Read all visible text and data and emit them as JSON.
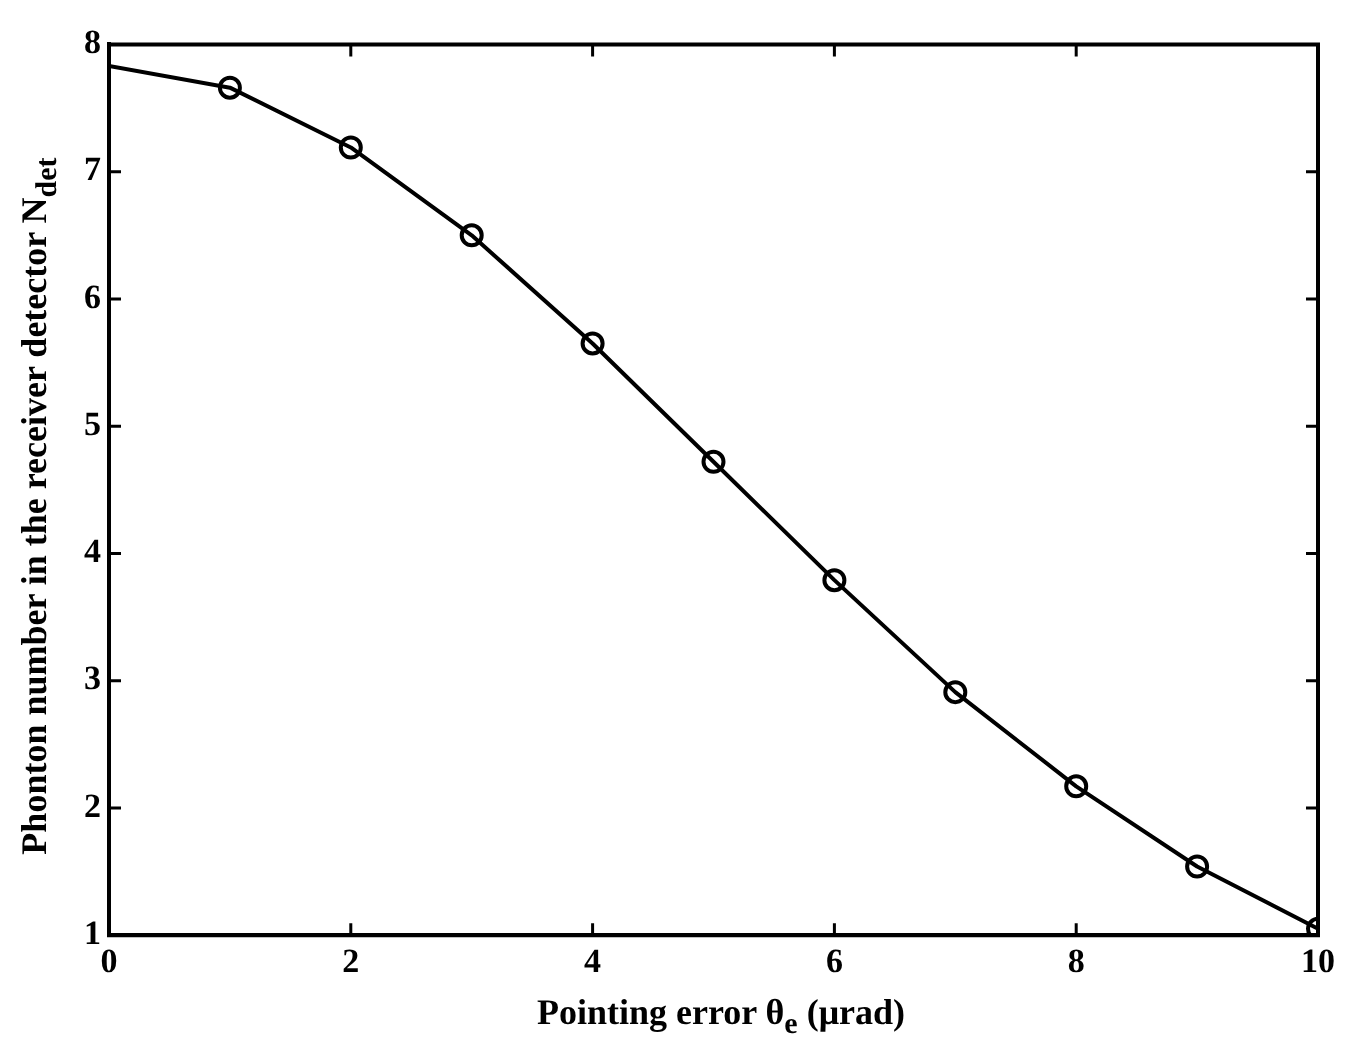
{
  "chart_data": {
    "type": "line",
    "xlabel": "Pointing error θ$_{e}$ (μrad)",
    "ylabel": "Phonton number in the receiver detector N$_{det}$",
    "series": [
      {
        "type": "line",
        "color": "#000000",
        "marker": "none",
        "x": [
          0,
          1,
          2,
          3,
          4,
          5,
          6,
          7,
          8,
          9,
          10
        ],
        "values": [
          7.83,
          7.66,
          7.19,
          6.5,
          5.65,
          4.72,
          3.79,
          2.91,
          2.17,
          1.54,
          1.05
        ]
      },
      {
        "type": "scatter",
        "color": "#000000",
        "marker": "circle",
        "x": [
          1,
          2,
          3,
          4,
          5,
          6,
          7,
          8,
          9,
          10
        ],
        "values": [
          7.66,
          7.19,
          6.5,
          5.65,
          4.72,
          3.79,
          2.91,
          2.17,
          1.54,
          1.05
        ]
      }
    ],
    "xlim": [
      0,
      10
    ],
    "xticks": [
      0,
      2,
      4,
      6,
      8,
      10
    ],
    "ylim": [
      1,
      8
    ],
    "yticks": [
      1,
      2,
      3,
      4,
      5,
      6,
      7,
      8
    ],
    "grid": false,
    "legend": false,
    "line_style": "solid"
  }
}
